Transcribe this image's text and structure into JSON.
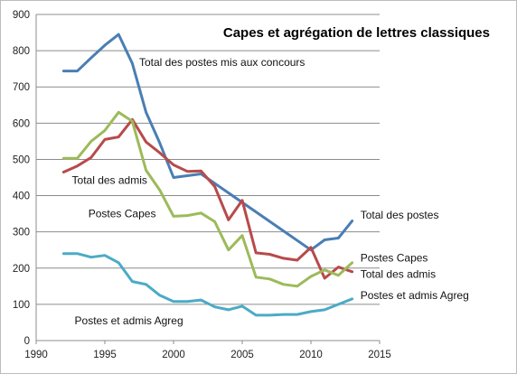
{
  "chart_data": {
    "type": "line",
    "title": "Capes et agrégation de lettres classiques",
    "xlabel": "",
    "ylabel": "",
    "xlim": [
      1990,
      2015
    ],
    "ylim": [
      0,
      900
    ],
    "x_ticks": [
      "1990",
      "1995",
      "2000",
      "2005",
      "2010",
      "2015"
    ],
    "y_ticks": [
      "0",
      "100",
      "200",
      "300",
      "400",
      "500",
      "600",
      "700",
      "800",
      "900"
    ],
    "grid": "horizontal",
    "x": [
      1992,
      1993,
      1994,
      1995,
      1996,
      1997,
      1998,
      1999,
      2000,
      2001,
      2002,
      2003,
      2004,
      2005,
      2006,
      2007,
      2008,
      2009,
      2010,
      2011,
      2012,
      2013
    ],
    "series": [
      {
        "name": "Total des postes mis aux concours",
        "color": "#4a7eb4",
        "values": [
          744,
          744,
          780,
          815,
          845,
          765,
          630,
          545,
          450,
          455,
          460,
          null,
          null,
          null,
          null,
          null,
          null,
          null,
          250,
          278,
          283,
          330
        ]
      },
      {
        "name": "Total des admis",
        "color": "#b84a4a",
        "values": [
          465,
          482,
          505,
          555,
          562,
          610,
          548,
          518,
          485,
          467,
          468,
          425,
          333,
          387,
          242,
          238,
          227,
          222,
          257,
          172,
          203,
          190
        ]
      },
      {
        "name": "Postes Capes",
        "color": "#9cbb59",
        "values": [
          503,
          503,
          550,
          580,
          630,
          605,
          470,
          415,
          343,
          345,
          352,
          328,
          250,
          290,
          175,
          170,
          155,
          150,
          177,
          195,
          180,
          215
        ]
      },
      {
        "name": "Postes et admis Agreg",
        "color": "#4babc6",
        "values": [
          240,
          240,
          230,
          235,
          215,
          163,
          155,
          125,
          108,
          108,
          112,
          93,
          85,
          95,
          70,
          70,
          72,
          72,
          80,
          85,
          100,
          115
        ]
      }
    ],
    "annotations": [
      {
        "text": "Total des postes mis aux concours",
        "x": 1997.5,
        "y": 758,
        "anchor": "start"
      },
      {
        "text": "Total des admis",
        "x": 1992.6,
        "y": 432,
        "anchor": "start"
      },
      {
        "text": "Postes Capes",
        "x": 1993.8,
        "y": 340,
        "anchor": "start"
      },
      {
        "text": "Postes et admis Agreg",
        "x": 1992.8,
        "y": 45,
        "anchor": "start"
      },
      {
        "text": "Total des postes",
        "x": 2013.6,
        "y": 337,
        "anchor": "start"
      },
      {
        "text": "Postes Capes",
        "x": 2013.6,
        "y": 218,
        "anchor": "start"
      },
      {
        "text": "Total des admis",
        "x": 2013.6,
        "y": 173,
        "anchor": "start"
      },
      {
        "text": "Postes et admis Agreg",
        "x": 2013.6,
        "y": 115,
        "anchor": "start"
      }
    ]
  }
}
